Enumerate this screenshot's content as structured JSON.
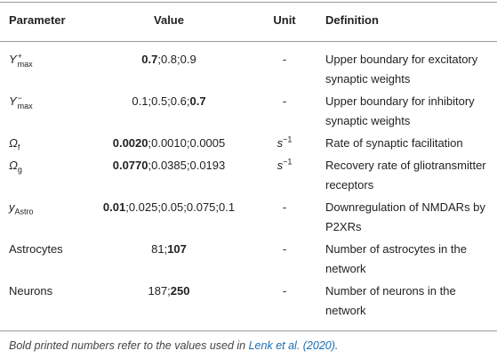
{
  "table": {
    "header": [
      "Parameter",
      "Value",
      "Unit",
      "Definition"
    ],
    "rows": [
      {
        "parameter": {
          "base": "Y",
          "sup": "+",
          "sub": "max"
        },
        "value": [
          {
            "text": "0.7",
            "bold": true
          },
          {
            "text": ";0.8;0.9",
            "bold": false
          }
        ],
        "unit": "-",
        "definition": "Upper boundary for excitatory synaptic weights"
      },
      {
        "parameter": {
          "base": "Y",
          "sup": "−",
          "sub": "max"
        },
        "value": [
          {
            "text": "0.1;0.5;0.6;",
            "bold": false
          },
          {
            "text": "0.7",
            "bold": true
          }
        ],
        "unit": "-",
        "definition": "Upper boundary for inhibitory synaptic weights"
      },
      {
        "parameter": {
          "base": "Ω",
          "sub": "f"
        },
        "value": [
          {
            "text": "0.0020",
            "bold": true
          },
          {
            "text": ";0.0010;0.0005",
            "bold": false
          }
        ],
        "unit": {
          "base": "s",
          "sup": "−1"
        },
        "definition": "Rate of synaptic facilitation"
      },
      {
        "parameter": {
          "base": "Ω",
          "sub": "g"
        },
        "value": [
          {
            "text": "0.0770",
            "bold": true
          },
          {
            "text": ";0.0385;0.0193",
            "bold": false
          }
        ],
        "unit": {
          "base": "s",
          "sup": "−1"
        },
        "definition": "Recovery rate of gliotransmitter receptors"
      },
      {
        "parameter": {
          "base": "y",
          "sub": "Astro"
        },
        "value": [
          {
            "text": "0.01",
            "bold": true
          },
          {
            "text": ";0.025;0.05;0.075;0.1",
            "bold": false
          }
        ],
        "unit": "-",
        "definition": "Downregulation of NMDARs by P2XRs"
      },
      {
        "parameter": "Astrocytes",
        "value": [
          {
            "text": "81;",
            "bold": false
          },
          {
            "text": "107",
            "bold": true
          }
        ],
        "unit": "-",
        "definition": "Number of astrocytes in the network"
      },
      {
        "parameter": "Neurons",
        "value": [
          {
            "text": "187;",
            "bold": false
          },
          {
            "text": "250",
            "bold": true
          }
        ],
        "unit": "-",
        "definition": "Number of neurons in the network"
      }
    ]
  },
  "footnote": [
    {
      "text": "Bold printed numbers refer to the values used in ",
      "link": false
    },
    {
      "text": "Lenk et al. (2020)",
      "link": true
    },
    {
      "text": ".",
      "link": false
    }
  ]
}
